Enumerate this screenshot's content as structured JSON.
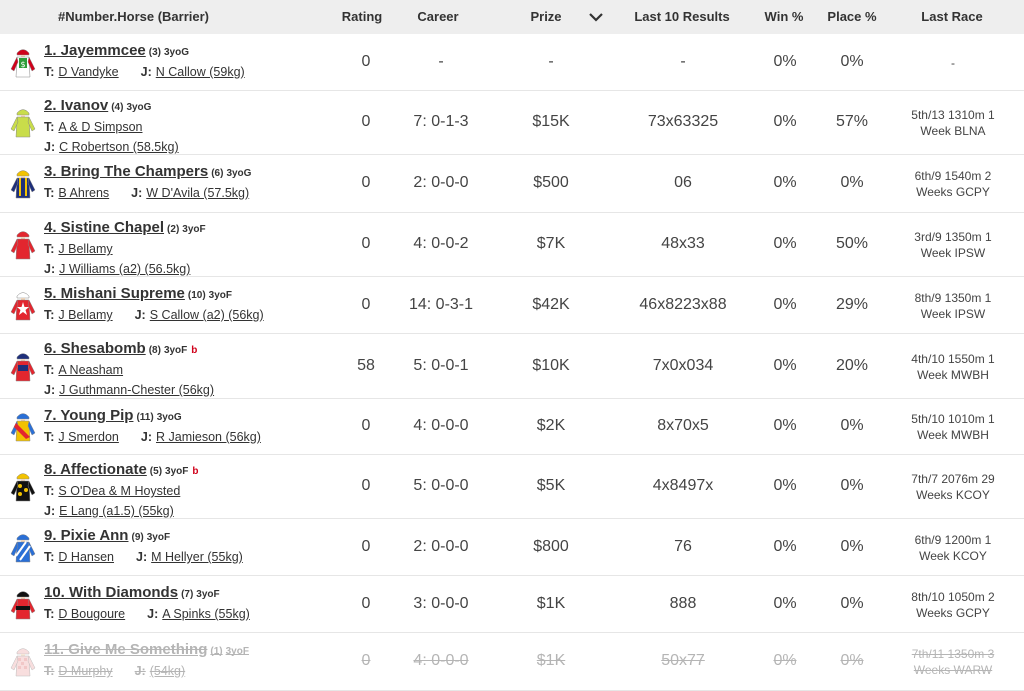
{
  "header": {
    "horse": "#Number.Horse (Barrier)",
    "rating": "Rating",
    "career": "Career",
    "prize": "Prize",
    "last10": "Last 10 Results",
    "win": "Win %",
    "place": "Place %",
    "lastrace": "Last Race"
  },
  "colors": {
    "header_bg": "#eeeeee",
    "text": "#333333",
    "gear_red": "#d0021b",
    "scratched": "#b5b5b5"
  },
  "labels": {
    "trainer_prefix": "T:",
    "jockey_prefix": "J:"
  },
  "runners": [
    {
      "name": "1. Jayemmcee",
      "barrier": "(3)",
      "age": "3yoG",
      "gear": "",
      "trainer": "D Vandyke",
      "jockey": "N Callow (59kg)",
      "rating": "0",
      "career": "-",
      "prize": "-",
      "last10": "-",
      "win": "0%",
      "place": "0%",
      "lastrace_1": "-",
      "lastrace_2": "",
      "silk": "silk-white-green-dollar-icon",
      "scratched": false
    },
    {
      "name": "2. Ivanov",
      "barrier": "(4)",
      "age": "3yoG",
      "gear": "",
      "trainer": "A & D Simpson",
      "jockey": "C Robertson (58.5kg)",
      "rating": "0",
      "career": "7: 0-1-3",
      "prize": "$15K",
      "last10": "73x63325",
      "win": "0%",
      "place": "57%",
      "lastrace_1": "5th/13 1310m 1",
      "lastrace_2": "Week BLNA",
      "silk": "silk-lime-icon",
      "scratched": false
    },
    {
      "name": "3. Bring The Champers",
      "barrier": "(6)",
      "age": "3yoG",
      "gear": "",
      "trainer": "B Ahrens",
      "jockey": "W D'Avila (57.5kg)",
      "rating": "0",
      "career": "2: 0-0-0",
      "prize": "$500",
      "last10": "06",
      "win": "0%",
      "place": "0%",
      "lastrace_1": "6th/9 1540m 2",
      "lastrace_2": "Weeks GCPY",
      "silk": "silk-navy-yellow-stripes-icon",
      "scratched": false
    },
    {
      "name": "4. Sistine Chapel",
      "barrier": "(2)",
      "age": "3yoF",
      "gear": "",
      "trainer": "J Bellamy",
      "jockey": "J Williams (a2) (56.5kg)",
      "rating": "0",
      "career": "4: 0-0-2",
      "prize": "$7K",
      "last10": "48x33",
      "win": "0%",
      "place": "50%",
      "lastrace_1": "3rd/9 1350m 1",
      "lastrace_2": "Week IPSW",
      "silk": "silk-red-icon",
      "scratched": false
    },
    {
      "name": "5. Mishani Supreme",
      "barrier": "(10)",
      "age": "3yoF",
      "gear": "",
      "trainer": "J Bellamy",
      "jockey": "S Callow (a2) (56kg)",
      "rating": "0",
      "career": "14: 0-3-1",
      "prize": "$42K",
      "last10": "46x8223x88",
      "win": "0%",
      "place": "29%",
      "lastrace_1": "8th/9 1350m 1",
      "lastrace_2": "Week IPSW",
      "silk": "silk-red-white-star-icon",
      "scratched": false
    },
    {
      "name": "6. Shesabomb",
      "barrier": "(8)",
      "age": "3yoF",
      "gear": "b",
      "trainer": "A Neasham",
      "jockey": "J Guthmann-Chester (56kg)",
      "rating": "58",
      "career": "5: 0-0-1",
      "prize": "$10K",
      "last10": "7x0x034",
      "win": "0%",
      "place": "20%",
      "lastrace_1": "4th/10 1550m 1",
      "lastrace_2": "Week MWBH",
      "silk": "silk-red-navy-icon",
      "scratched": false
    },
    {
      "name": "7. Young Pip",
      "barrier": "(11)",
      "age": "3yoG",
      "gear": "",
      "trainer": "J Smerdon",
      "jockey": "R Jamieson (56kg)",
      "rating": "0",
      "career": "4: 0-0-0",
      "prize": "$2K",
      "last10": "8x70x5",
      "win": "0%",
      "place": "0%",
      "lastrace_1": "5th/10 1010m 1",
      "lastrace_2": "Week MWBH",
      "silk": "silk-yellow-red-blue-icon",
      "scratched": false
    },
    {
      "name": "8. Affectionate",
      "barrier": "(5)",
      "age": "3yoF",
      "gear": "b",
      "trainer": "S O'Dea & M Hoysted",
      "jockey": "E Lang (a1.5) (55kg)",
      "rating": "0",
      "career": "5: 0-0-0",
      "prize": "$5K",
      "last10": "4x8497x",
      "win": "0%",
      "place": "0%",
      "lastrace_1": "7th/7 2076m 29",
      "lastrace_2": "Weeks KCOY",
      "silk": "silk-black-yellow-spots-icon",
      "scratched": false
    },
    {
      "name": "9. Pixie Ann",
      "barrier": "(9)",
      "age": "3yoF",
      "gear": "",
      "trainer": "D Hansen",
      "jockey": "M Hellyer (55kg)",
      "rating": "0",
      "career": "2: 0-0-0",
      "prize": "$800",
      "last10": "76",
      "win": "0%",
      "place": "0%",
      "lastrace_1": "6th/9 1200m 1",
      "lastrace_2": "Week KCOY",
      "silk": "silk-blue-white-stripes-icon",
      "scratched": false
    },
    {
      "name": "10. With Diamonds",
      "barrier": "(7)",
      "age": "3yoF",
      "gear": "",
      "trainer": "D Bougoure",
      "jockey": "A Spinks (55kg)",
      "rating": "0",
      "career": "3: 0-0-0",
      "prize": "$1K",
      "last10": "888",
      "win": "0%",
      "place": "0%",
      "lastrace_1": "8th/10 1050m 2",
      "lastrace_2": "Weeks GCPY",
      "silk": "silk-red-black-band-icon",
      "scratched": false
    },
    {
      "name": "11. Give Me Something",
      "barrier": "(1)",
      "age": "3yoF",
      "gear": "",
      "trainer": "D Murphy",
      "jockey": "(54kg)",
      "rating": "0",
      "career": "4: 0-0-0",
      "prize": "$1K",
      "last10": "50x77",
      "win": "0%",
      "place": "0%",
      "lastrace_1": "7th/11 1350m 3",
      "lastrace_2": "Weeks WARW",
      "silk": "silk-red-white-check-icon",
      "scratched": true
    }
  ]
}
